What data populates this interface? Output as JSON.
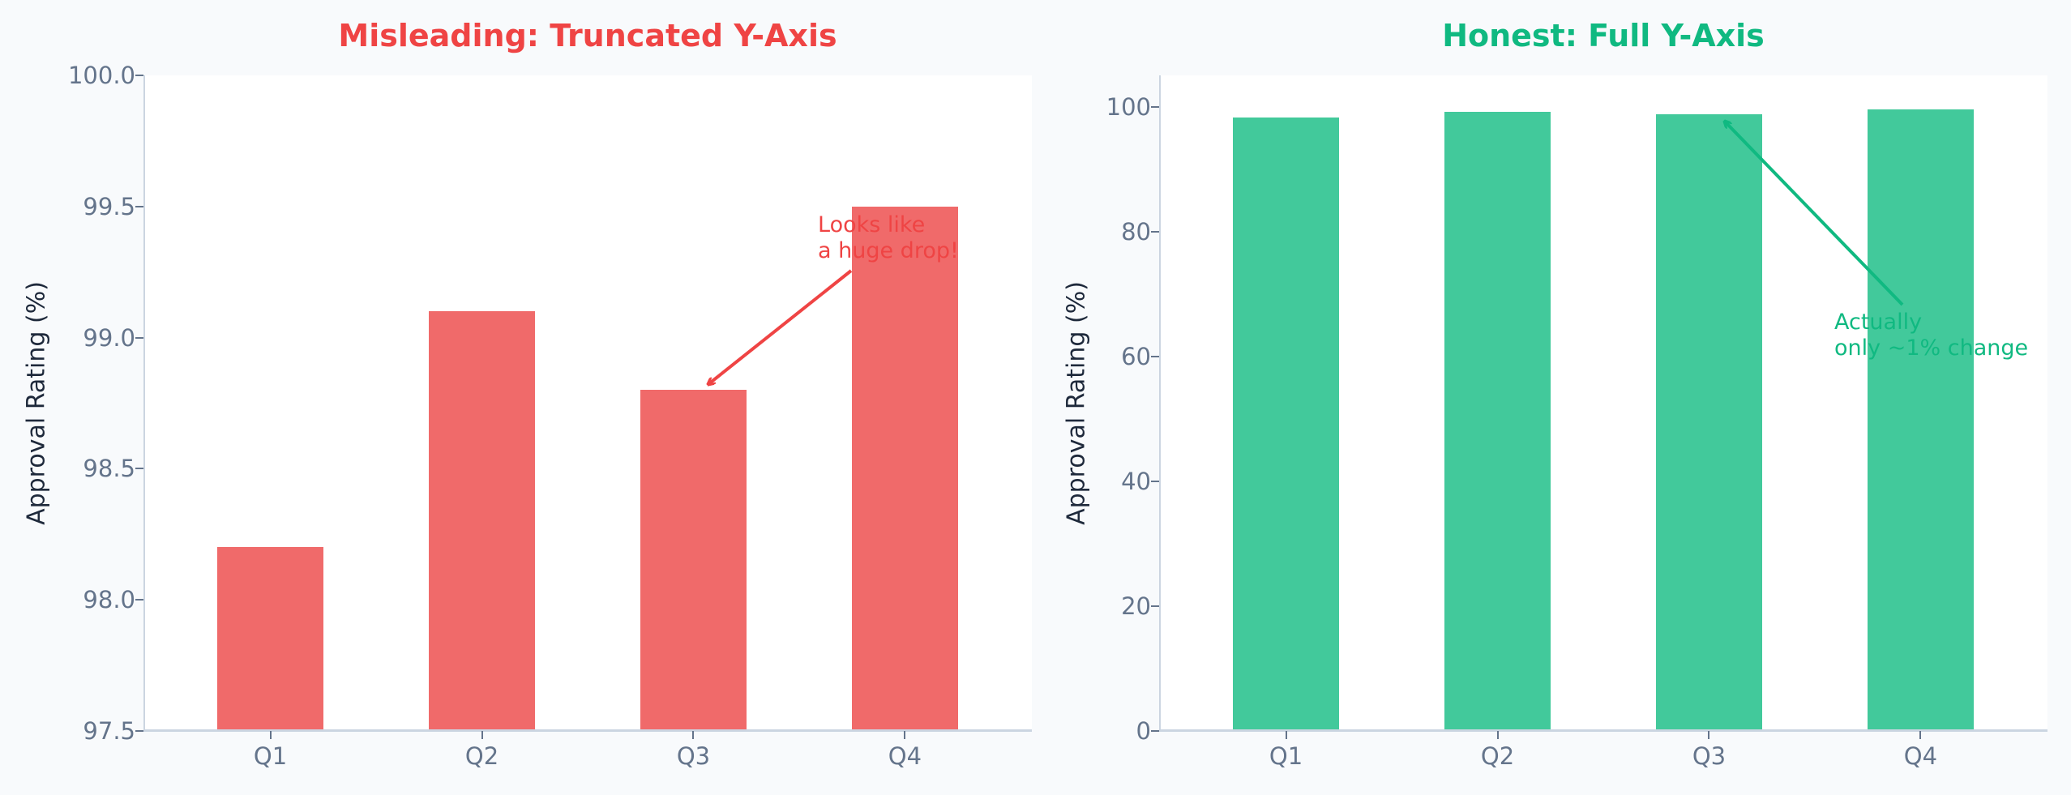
{
  "colors": {
    "misleading": "#ef4444",
    "misleading_bar": "#f06a6a",
    "honest": "#10b981",
    "honest_bar": "#42c99b",
    "axis": "#cbd5e1",
    "tick_text": "#64748b",
    "label_text": "#1e293b",
    "background": "#f8fafc"
  },
  "left": {
    "title": "Misleading: Truncated Y-Axis",
    "ylabel": "Approval Rating (%)",
    "yticks": [
      "100.0",
      "99.5",
      "99.0",
      "98.5",
      "98.0",
      "97.5"
    ],
    "xticks": [
      "Q1",
      "Q2",
      "Q3",
      "Q4"
    ],
    "annotation": "Looks like\na huge drop!"
  },
  "right": {
    "title": "Honest: Full Y-Axis",
    "ylabel": "Approval Rating (%)",
    "yticks": [
      "100",
      "80",
      "60",
      "40",
      "20",
      "0"
    ],
    "xticks": [
      "Q1",
      "Q2",
      "Q3",
      "Q4"
    ],
    "annotation": "Actually\nonly ~1% change"
  },
  "chart_data": [
    {
      "type": "bar",
      "title": "Misleading: Truncated Y-Axis",
      "categories": [
        "Q1",
        "Q2",
        "Q3",
        "Q4"
      ],
      "values": [
        98.2,
        99.1,
        98.8,
        99.5
      ],
      "xlabel": "",
      "ylabel": "Approval Rating (%)",
      "ylim": [
        97.5,
        100.0
      ],
      "yticks": [
        97.5,
        98.0,
        98.5,
        99.0,
        99.5,
        100.0
      ],
      "grid": false,
      "annotations": [
        {
          "text": "Looks like\na huge drop!",
          "points_to": "Q3"
        }
      ]
    },
    {
      "type": "bar",
      "title": "Honest: Full Y-Axis",
      "categories": [
        "Q1",
        "Q2",
        "Q3",
        "Q4"
      ],
      "values": [
        98.2,
        99.1,
        98.8,
        99.5
      ],
      "xlabel": "",
      "ylabel": "Approval Rating (%)",
      "ylim": [
        0,
        105
      ],
      "yticks": [
        0,
        20,
        40,
        60,
        80,
        100
      ],
      "grid": false,
      "annotations": [
        {
          "text": "Actually\nonly ~1% change",
          "points_to": "Q3"
        }
      ]
    }
  ]
}
